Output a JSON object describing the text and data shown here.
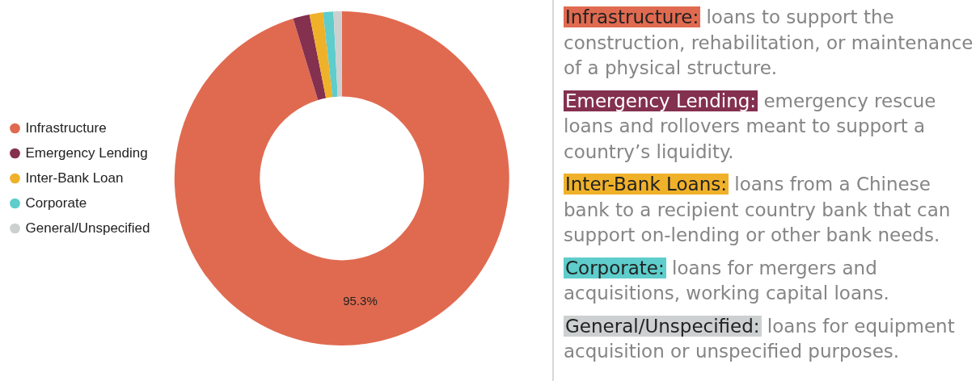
{
  "chart_data": {
    "type": "donut",
    "categories": [
      "Infrastructure",
      "Emergency Lending",
      "Inter-Bank Loan",
      "Corporate",
      "General/Unspecified"
    ],
    "values": [
      95.3,
      1.6,
      1.3,
      1.0,
      0.8
    ],
    "colors": [
      "#e06a50",
      "#84304f",
      "#f0b12a",
      "#5ecdcb",
      "#cdd0d0"
    ],
    "value_labels": [
      "95.3%",
      null,
      null,
      null,
      null
    ],
    "legend": "left",
    "annotations": [
      "Infrastructure: loans to support the construction, rehabilitation, or maintenance of a physical structure.",
      "Emergency Lending: emergency rescue loans and rollovers meant to support a country’s liquidity.",
      "Inter-Bank Loans: loans from a Chinese bank to a recipient country bank that can support on-lending or other bank needs.",
      "Corporate: loans for mergers and acquisitions, working capital loans.",
      "General/Unspecified: loans for equipment acquisition or unspecified purposes."
    ]
  }
}
